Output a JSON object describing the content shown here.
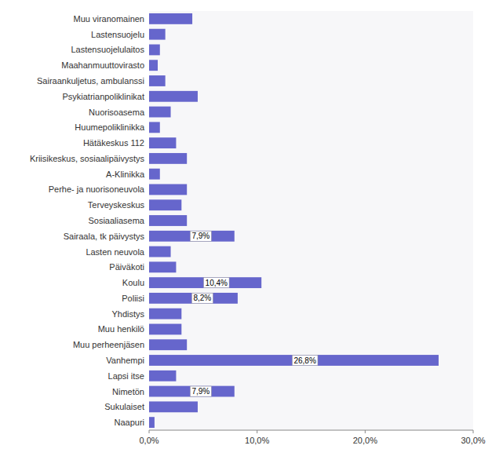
{
  "chart_data": {
    "type": "bar",
    "orientation": "horizontal",
    "categories": [
      "Naapuri",
      "Sukulaiset",
      "Nimetön",
      "Lapsi itse",
      "Vanhempi",
      "Muu perheenjäsen",
      "Muu henkilö",
      "Yhdistys",
      "Poliisi",
      "Koulu",
      "Päiväkoti",
      "Lasten neuvola",
      "Sairaala, tk päivystys",
      "Sosiaaliasema",
      "Terveyskeskus",
      "Perhe- ja nuorisoneuvola",
      "A-Klinikka",
      "Kriisikeskus, sosiaalipäivystys",
      "Hätäkeskus 112",
      "Huumepoliklinikka",
      "Nuorisoasema",
      "Psykiatrianpoliklinikat",
      "Sairaankuljetus, ambulanssi",
      "Maahanmuuttovirasto",
      "Lastensuojelulaitos",
      "Lastensuojelu",
      "Muu viranomainen"
    ],
    "values": [
      0.5,
      4.5,
      7.9,
      2.5,
      26.8,
      3.5,
      3.0,
      3.0,
      8.2,
      10.4,
      2.5,
      2.0,
      7.9,
      3.5,
      3.0,
      3.5,
      1.0,
      3.5,
      2.5,
      1.0,
      2.0,
      4.5,
      1.5,
      0.8,
      1.0,
      1.5,
      4.0
    ],
    "value_labels": [
      null,
      null,
      "7,9%",
      null,
      "26,8%",
      null,
      null,
      null,
      "8,2%",
      "10,4%",
      null,
      null,
      "7,9%",
      null,
      null,
      null,
      null,
      null,
      null,
      null,
      null,
      null,
      null,
      null,
      null,
      null,
      null
    ],
    "data_labels": true,
    "color": "#6666CC",
    "xlim": [
      0,
      30
    ],
    "xticks": [
      {
        "value": 0,
        "label": "0,0%"
      },
      {
        "value": 10,
        "label": "10,0%"
      },
      {
        "value": 20,
        "label": "20,0%"
      },
      {
        "value": 30,
        "label": "30,0%"
      }
    ],
    "grid": false
  }
}
